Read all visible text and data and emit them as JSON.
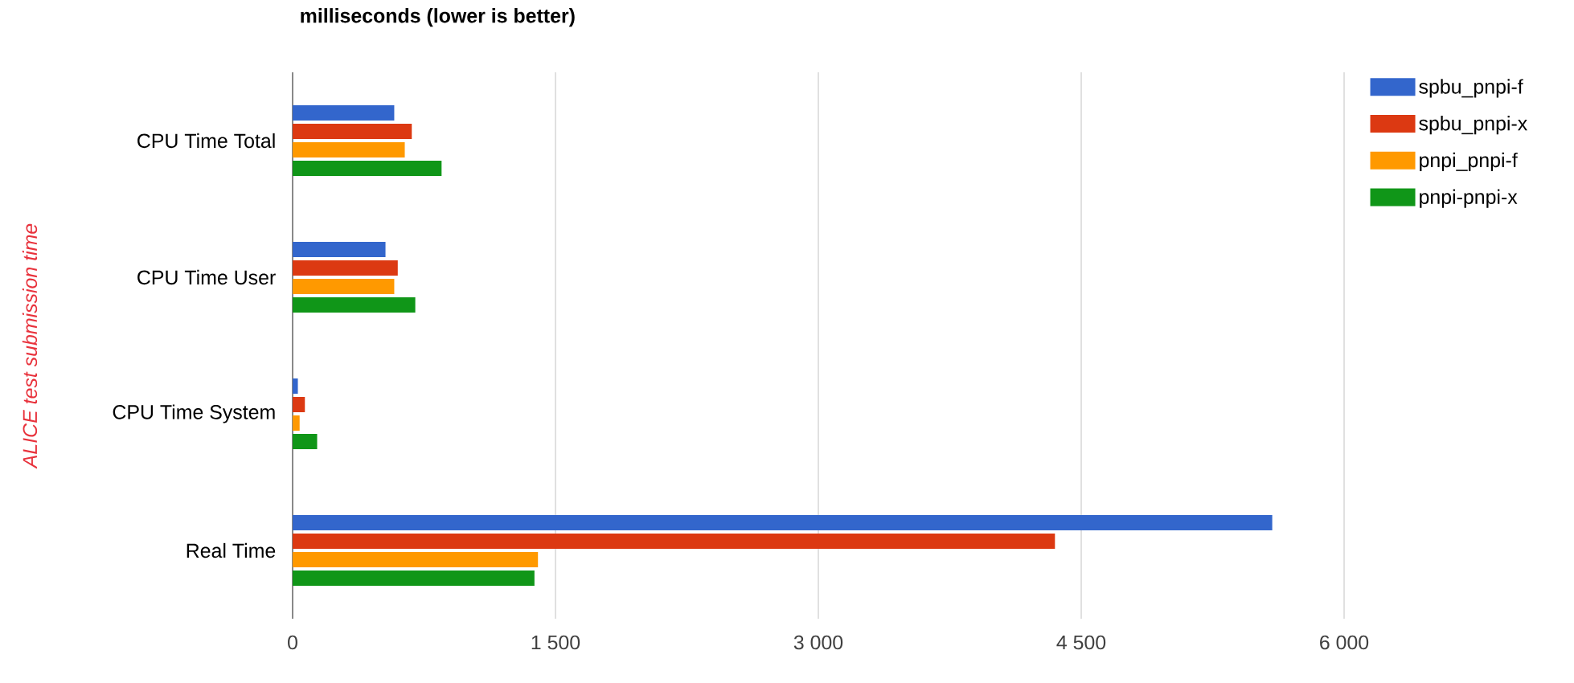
{
  "chart_data": {
    "type": "bar",
    "orientation": "horizontal",
    "title": "milliseconds (lower is better)",
    "ylabel": "ALICE test submission time",
    "categories": [
      "CPU Time Total",
      "CPU Time User",
      "CPU Time System",
      "Real Time"
    ],
    "series": [
      {
        "name": "spbu_pnpi-f",
        "color": "#3366cc",
        "values": [
          580,
          530,
          30,
          5590
        ]
      },
      {
        "name": "spbu_pnpi-x",
        "color": "#dc3912",
        "values": [
          680,
          600,
          70,
          4350
        ]
      },
      {
        "name": "pnpi_pnpi-f",
        "color": "#ff9900",
        "values": [
          640,
          580,
          40,
          1400
        ]
      },
      {
        "name": "pnpi-pnpi-x",
        "color": "#109618",
        "values": [
          850,
          700,
          140,
          1380
        ]
      }
    ],
    "xlim": [
      0,
      6000
    ],
    "xticks": [
      0,
      {
        "value": 1500,
        "label": "1 500"
      },
      {
        "value": 3000,
        "label": "3 000"
      },
      {
        "value": 4500,
        "label": "4 500"
      },
      {
        "value": 6000,
        "label": "6 000"
      }
    ],
    "grid": "x",
    "legend": "top right"
  }
}
